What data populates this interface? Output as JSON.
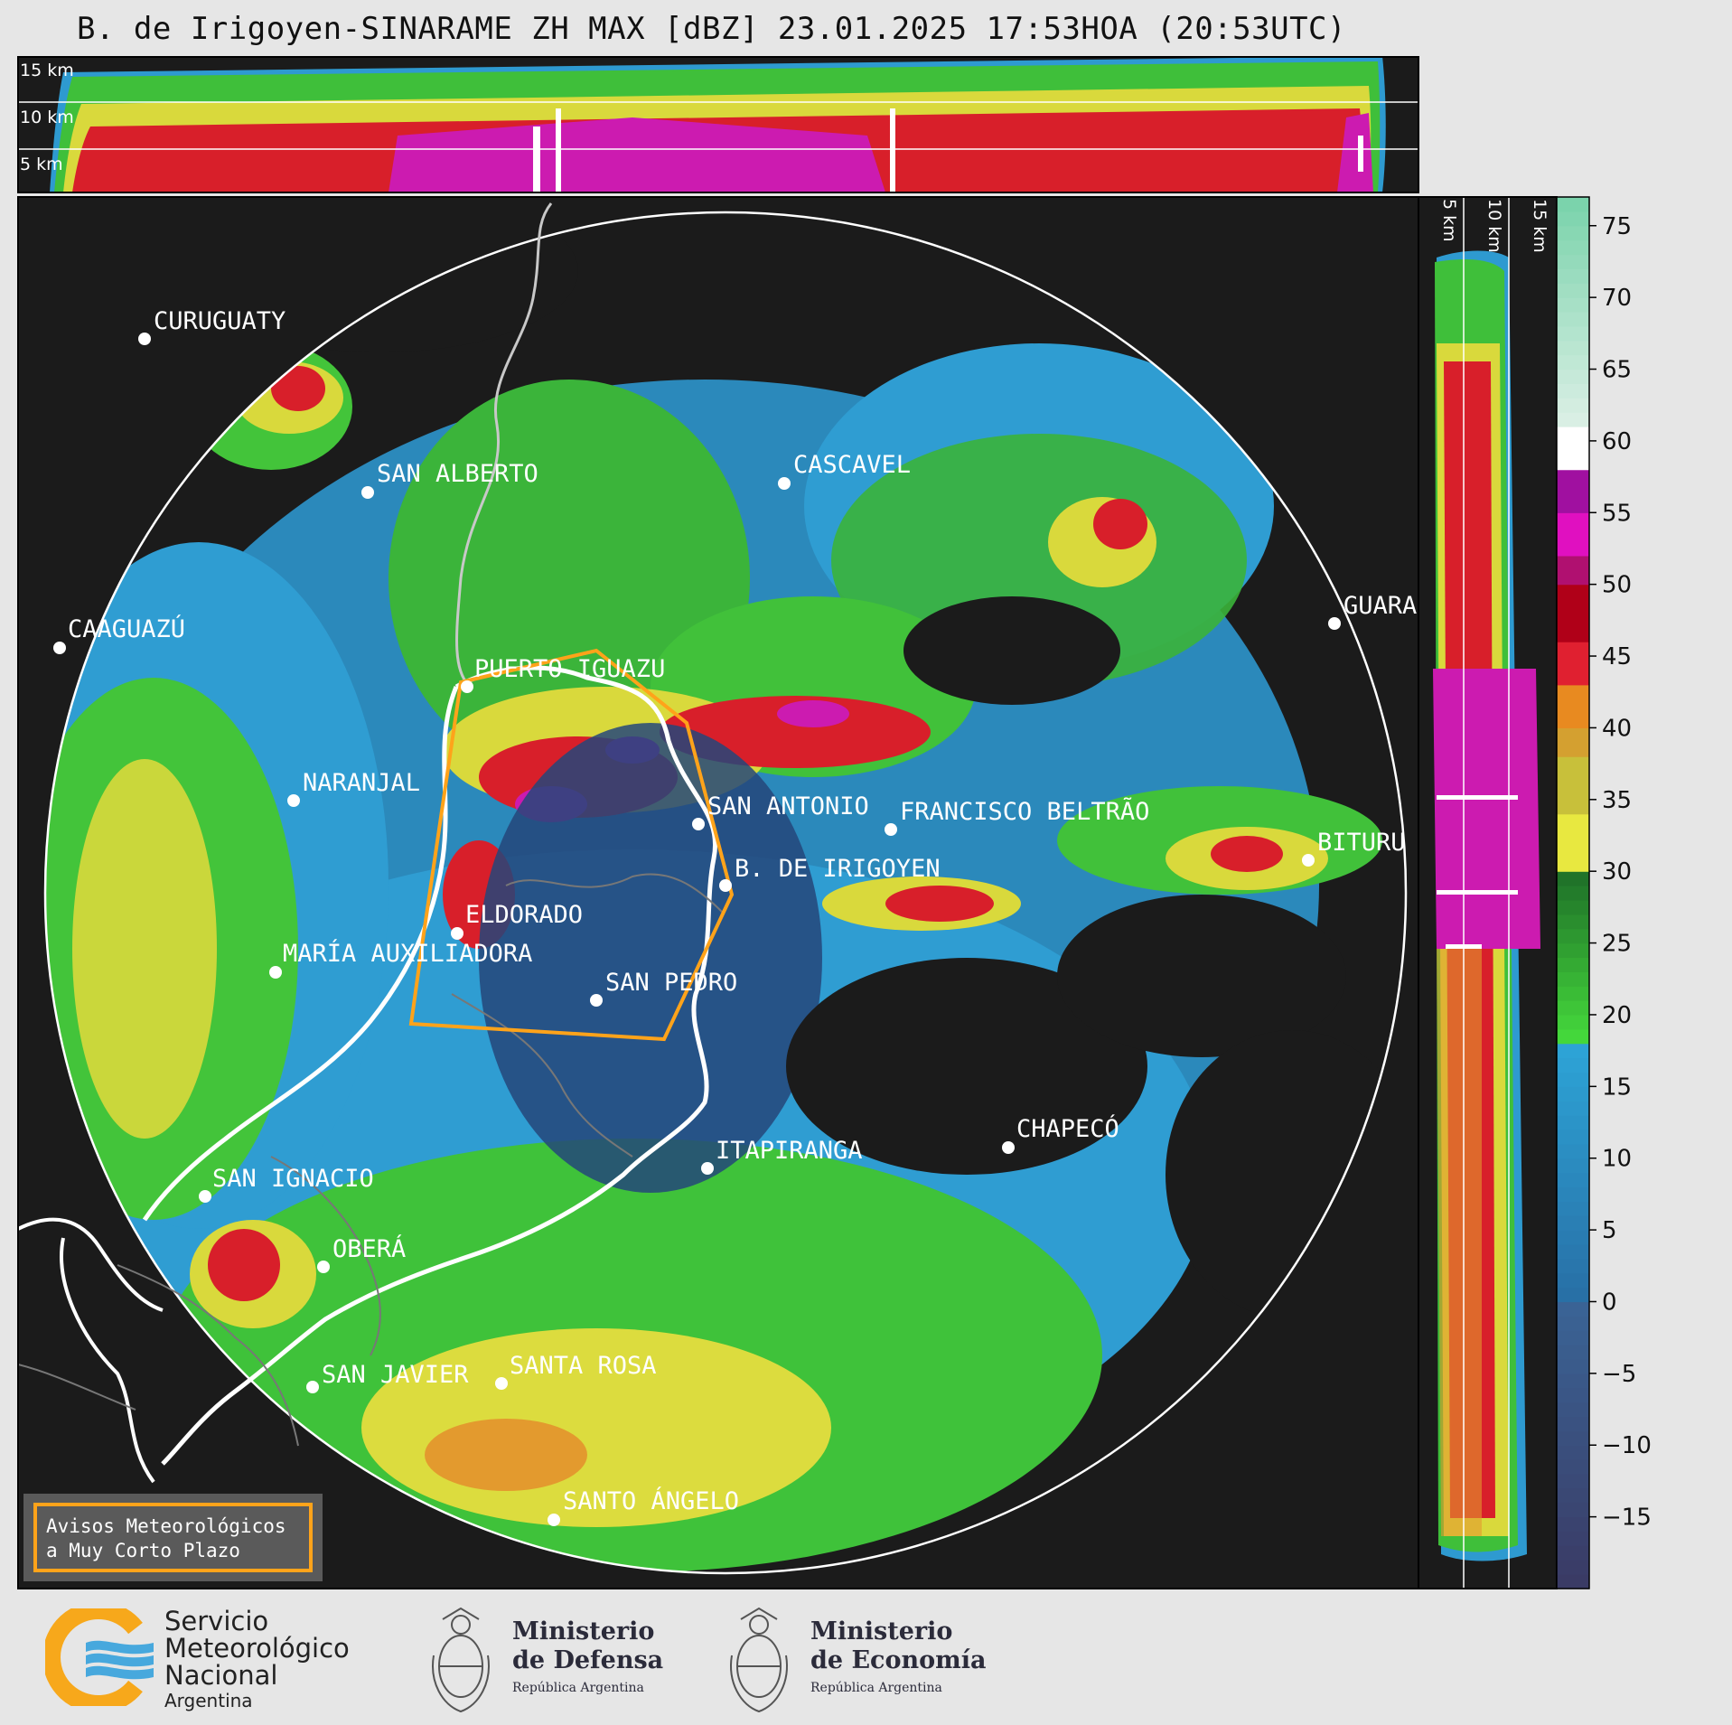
{
  "title": "B. de Irigoyen-SINARAME ZH MAX [dBZ] 23.01.2025 17:53HOA (20:53UTC)",
  "top_panel": {
    "height_labels": [
      "15 km",
      "10 km",
      "5 km"
    ]
  },
  "side_panel": {
    "height_labels": [
      "5 km",
      "10 km",
      "15 km"
    ]
  },
  "colorbar": {
    "tick_labels": [
      "75",
      "70",
      "65",
      "60",
      "55",
      "50",
      "45",
      "40",
      "35",
      "30",
      "25",
      "20",
      "15",
      "10",
      "5",
      "0",
      "−5",
      "−10",
      "−15"
    ],
    "range": [
      -20,
      77
    ]
  },
  "places": [
    {
      "name": "CURUGUATY"
    },
    {
      "name": "SAN ALBERTO"
    },
    {
      "name": "CASCAVEL"
    },
    {
      "name": "CAAGUAZÚ"
    },
    {
      "name": "GUARA"
    },
    {
      "name": "PUERTO IGUAZU"
    },
    {
      "name": "NARANJAL"
    },
    {
      "name": "SAN ANTONIO"
    },
    {
      "name": "FRANCISCO BELTRÃO"
    },
    {
      "name": "BITURU"
    },
    {
      "name": "B. DE IRIGOYEN"
    },
    {
      "name": "ELDORADO"
    },
    {
      "name": "MARÍA AUXILIADORA"
    },
    {
      "name": "SAN PEDRO"
    },
    {
      "name": "CHAPECÓ"
    },
    {
      "name": "ITAPIRANGA"
    },
    {
      "name": "SAN IGNACIO"
    },
    {
      "name": "OBERÁ"
    },
    {
      "name": "SAN JAVIER"
    },
    {
      "name": "SANTA ROSA"
    },
    {
      "name": "SANTO ÁNGELO"
    }
  ],
  "warning_box": {
    "line1": "Avisos Meteorológicos",
    "line2": "a Muy Corto Plazo"
  },
  "logos": {
    "smn": {
      "line1": "Servicio",
      "line2": "Meteorológico",
      "line3": "Nacional",
      "line4": "Argentina"
    },
    "defensa": {
      "line1": "Ministerio",
      "line2": "de Defensa",
      "line3": "República Argentina"
    },
    "economia": {
      "line1": "Ministerio",
      "line2": "de Economía",
      "line3": "República Argentina"
    }
  }
}
